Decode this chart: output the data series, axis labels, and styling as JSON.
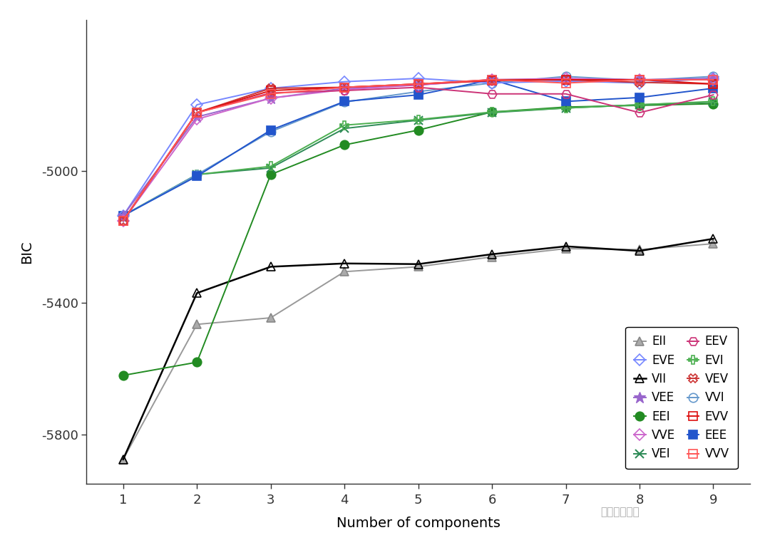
{
  "x": [
    1,
    2,
    3,
    4,
    5,
    6,
    7,
    8,
    9
  ],
  "bic_data": {
    "EII": [
      -5875,
      -5465,
      -5445,
      -5305,
      -5290,
      -5260,
      -5235,
      -5238,
      -5220
    ],
    "VII": [
      -5875,
      -5370,
      -5290,
      -5280,
      -5282,
      -5252,
      -5228,
      -5242,
      -5205
    ],
    "EEI": [
      -5620,
      -5580,
      -5010,
      -4920,
      -4875,
      -4820,
      -4805,
      -4800,
      -4795
    ],
    "VEI": [
      -5135,
      -5010,
      -4990,
      -4870,
      -4845,
      -4822,
      -4808,
      -4798,
      -4790
    ],
    "EVI": [
      -5135,
      -5010,
      -4985,
      -4860,
      -4843,
      -4820,
      -4808,
      -4798,
      -4788
    ],
    "VVI": [
      -5135,
      -5010,
      -4880,
      -4790,
      -4758,
      -4732,
      -4712,
      -4724,
      -4712
    ],
    "EEE": [
      -5135,
      -5015,
      -4875,
      -4788,
      -4768,
      -4722,
      -4788,
      -4776,
      -4748
    ],
    "EVE": [
      -5135,
      -4798,
      -4748,
      -4728,
      -4718,
      -4732,
      -4726,
      -4732,
      -4718
    ],
    "VEE": [
      -5135,
      -4835,
      -4778,
      -4748,
      -4738,
      -4722,
      -4722,
      -4722,
      -4718
    ],
    "VVE": [
      -5150,
      -4842,
      -4778,
      -4752,
      -4738,
      -4722,
      -4718,
      -4722,
      -4722
    ],
    "EEV": [
      -5150,
      -4822,
      -4762,
      -4755,
      -4745,
      -4765,
      -4765,
      -4822,
      -4768
    ],
    "VEV": [
      -5150,
      -4822,
      -4748,
      -4745,
      -4735,
      -4722,
      -4722,
      -4730,
      -4735
    ],
    "EVV": [
      -5150,
      -4822,
      -4755,
      -4745,
      -4735,
      -4725,
      -4722,
      -4722,
      -4735
    ],
    "VVV": [
      -5150,
      -4822,
      -4765,
      -4745,
      -4735,
      -4722,
      -4732,
      -4722,
      -4722
    ]
  },
  "series_styles": {
    "EII": {
      "color": "#999999",
      "marker": "^",
      "mfc": "#aaaaaa",
      "mec": "#888888",
      "ms": 8,
      "mew": 1.2,
      "lw": 1.4
    },
    "VII": {
      "color": "#000000",
      "marker": "^",
      "mfc": "none",
      "mec": "#000000",
      "ms": 9,
      "mew": 1.2,
      "lw": 1.8
    },
    "EEI": {
      "color": "#228B22",
      "marker": "o",
      "mfc": "#228B22",
      "mec": "#228B22",
      "ms": 9,
      "mew": 1.2,
      "lw": 1.4
    },
    "VEI": {
      "color": "#2e8b57",
      "marker": "x",
      "mfc": "#2e8b57",
      "mec": "#2e8b57",
      "ms": 9,
      "mew": 1.5,
      "lw": 1.4
    },
    "EVI": {
      "color": "#4caf50",
      "marker": "P",
      "mfc": "none",
      "mec": "#4caf50",
      "ms": 9,
      "mew": 1.2,
      "lw": 1.4
    },
    "VVI": {
      "color": "#6699cc",
      "marker": "o",
      "mfc": "none",
      "mec": "#6699cc",
      "ms": 9,
      "mew": 1.2,
      "lw": 1.4
    },
    "EEE": {
      "color": "#2255cc",
      "marker": "s",
      "mfc": "#2255cc",
      "mec": "#2255cc",
      "ms": 9,
      "mew": 1.2,
      "lw": 1.4
    },
    "EVE": {
      "color": "#7788ff",
      "marker": "D",
      "mfc": "none",
      "mec": "#7788ff",
      "ms": 8,
      "mew": 1.2,
      "lw": 1.4
    },
    "VEE": {
      "color": "#9966cc",
      "marker": "*",
      "mfc": "#9966cc",
      "mec": "#9966cc",
      "ms": 12,
      "mew": 1.0,
      "lw": 1.4
    },
    "VVE": {
      "color": "#cc66cc",
      "marker": "D",
      "mfc": "none",
      "mec": "#cc66cc",
      "ms": 8,
      "mew": 1.2,
      "lw": 1.4
    },
    "EEV": {
      "color": "#cc3377",
      "marker": "H",
      "mfc": "none",
      "mec": "#cc3377",
      "ms": 9,
      "mew": 1.2,
      "lw": 1.4
    },
    "VEV": {
      "color": "#cc3333",
      "marker": "X",
      "mfc": "none",
      "mec": "#cc3333",
      "ms": 9,
      "mew": 1.2,
      "lw": 1.4
    },
    "EVV": {
      "color": "#dd1111",
      "marker": "s",
      "mfc": "none",
      "mec": "#dd1111",
      "ms": 9,
      "mew": 1.2,
      "lw": 1.4
    },
    "VVV": {
      "color": "#ff5555",
      "marker": "s",
      "mfc": "none",
      "mec": "#ff5555",
      "ms": 9,
      "mew": 1.2,
      "lw": 1.4
    }
  },
  "legend_left": [
    "EII",
    "VII",
    "EEI",
    "VEI",
    "EVI",
    "VVI",
    "EEE"
  ],
  "legend_right": [
    "EVE",
    "VEE",
    "VVE",
    "EEV",
    "VEV",
    "EVV",
    "VVV"
  ],
  "xlabel": "Number of components",
  "ylabel": "BIC",
  "xlim": [
    0.5,
    9.5
  ],
  "ylim": [
    -5950,
    -4540
  ],
  "yticks": [
    -5800,
    -5400,
    -5000
  ],
  "xticks": [
    1,
    2,
    3,
    4,
    5,
    6,
    7,
    8,
    9
  ],
  "fig_bg": "#ffffff",
  "plot_bg": "#ffffff",
  "watermark": "拓端数据部落"
}
